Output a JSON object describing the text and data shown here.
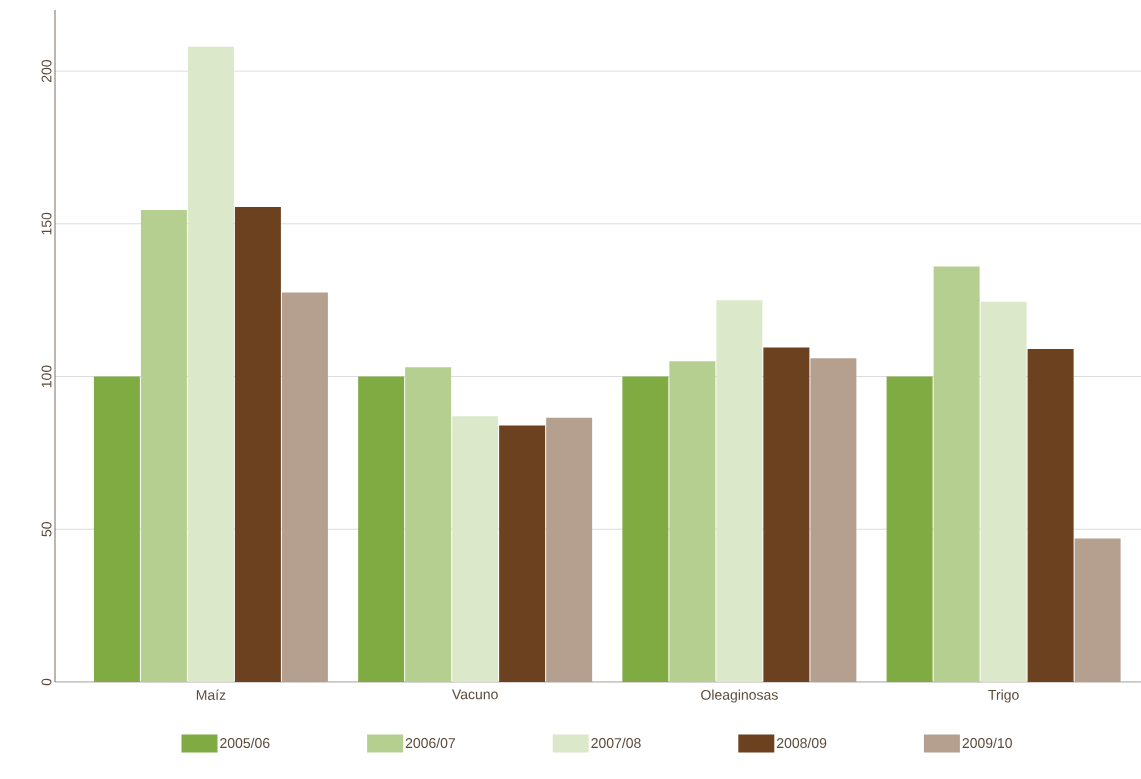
{
  "chart_data": {
    "type": "bar",
    "categories": [
      "Maíz",
      "Vacuno",
      "Oleaginosas",
      "Trigo"
    ],
    "series": [
      {
        "name": "2005/06",
        "color": "#80ab43",
        "values": [
          100,
          100,
          100,
          100
        ]
      },
      {
        "name": "2006/07",
        "color": "#b5cf91",
        "values": [
          154.5,
          103,
          105,
          136
        ]
      },
      {
        "name": "2007/08",
        "color": "#dbe8c9",
        "values": [
          208,
          87,
          125,
          124.5
        ]
      },
      {
        "name": "2008/09",
        "color": "#6b4120",
        "values": [
          155.5,
          84,
          109.5,
          109
        ]
      },
      {
        "name": "2009/10",
        "color": "#b5a08f",
        "values": [
          127.5,
          86.5,
          106,
          47
        ]
      }
    ],
    "ylim": [
      0,
      220
    ],
    "yticks": [
      0,
      50,
      100,
      150,
      200
    ],
    "grid": "y",
    "legend": "bottom"
  }
}
